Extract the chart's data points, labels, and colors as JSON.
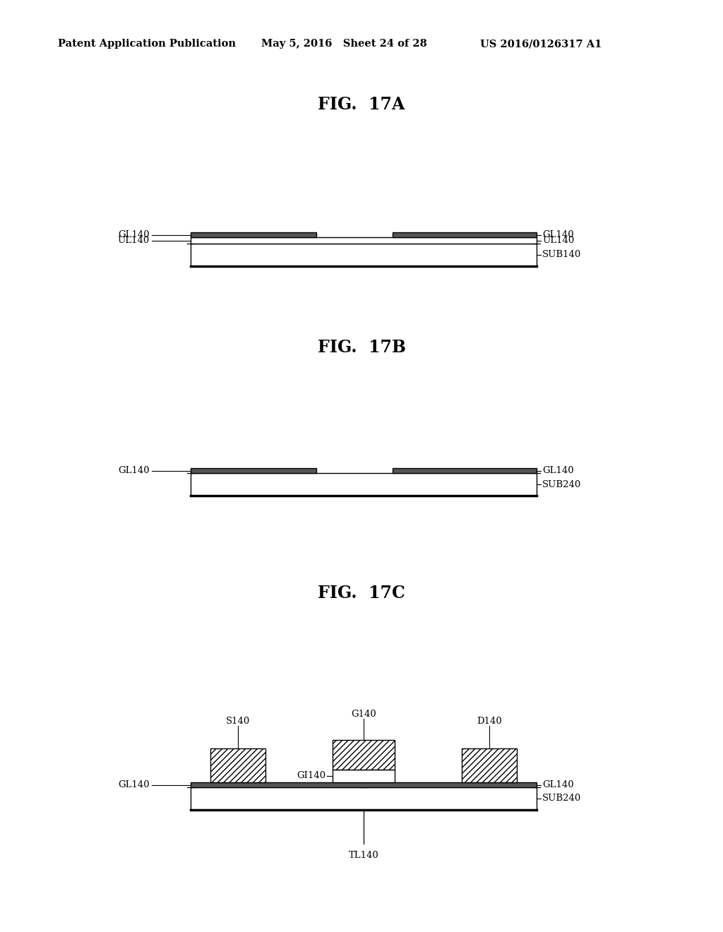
{
  "header_left": "Patent Application Publication",
  "header_mid": "May 5, 2016   Sheet 24 of 28",
  "header_right": "US 2016/0126317 A1",
  "fig17a_title": "FIG.  17A",
  "fig17b_title": "FIG.  17B",
  "fig17c_title": "FIG.  17C",
  "bg_color": "#ffffff",
  "line_color": "#000000"
}
